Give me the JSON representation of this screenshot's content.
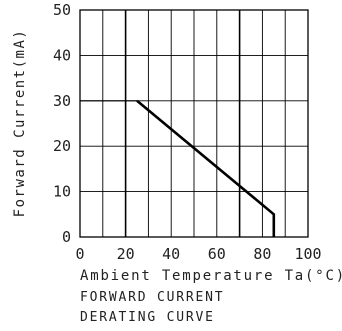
{
  "chart_data": {
    "type": "line",
    "title": "FORWARD CURRENT DERATING CURVE",
    "caption_lines": [
      "FORWARD CURRENT",
      "DERATING CURVE"
    ],
    "xlabel": "Ambient Temperature Ta(°C)",
    "ylabel": "Forward Current(mA)",
    "xlim": [
      0,
      100
    ],
    "ylim": [
      0,
      50
    ],
    "x_ticks": [
      0,
      20,
      40,
      60,
      80,
      100
    ],
    "y_ticks": [
      0,
      10,
      20,
      30,
      40,
      50
    ],
    "x_tick_labels": [
      "0",
      "20",
      "40",
      "60",
      "80",
      "100"
    ],
    "y_tick_labels": [
      "0",
      "10",
      "20",
      "30",
      "40",
      "50"
    ],
    "x_minor_step": 10,
    "x_major_lines": [
      20,
      70
    ],
    "grid": true,
    "series": [
      {
        "x": [
          25,
          85,
          85
        ],
        "y": [
          30,
          5,
          0
        ]
      }
    ],
    "colors": {
      "line": "#000000",
      "grid": "#000000"
    }
  }
}
